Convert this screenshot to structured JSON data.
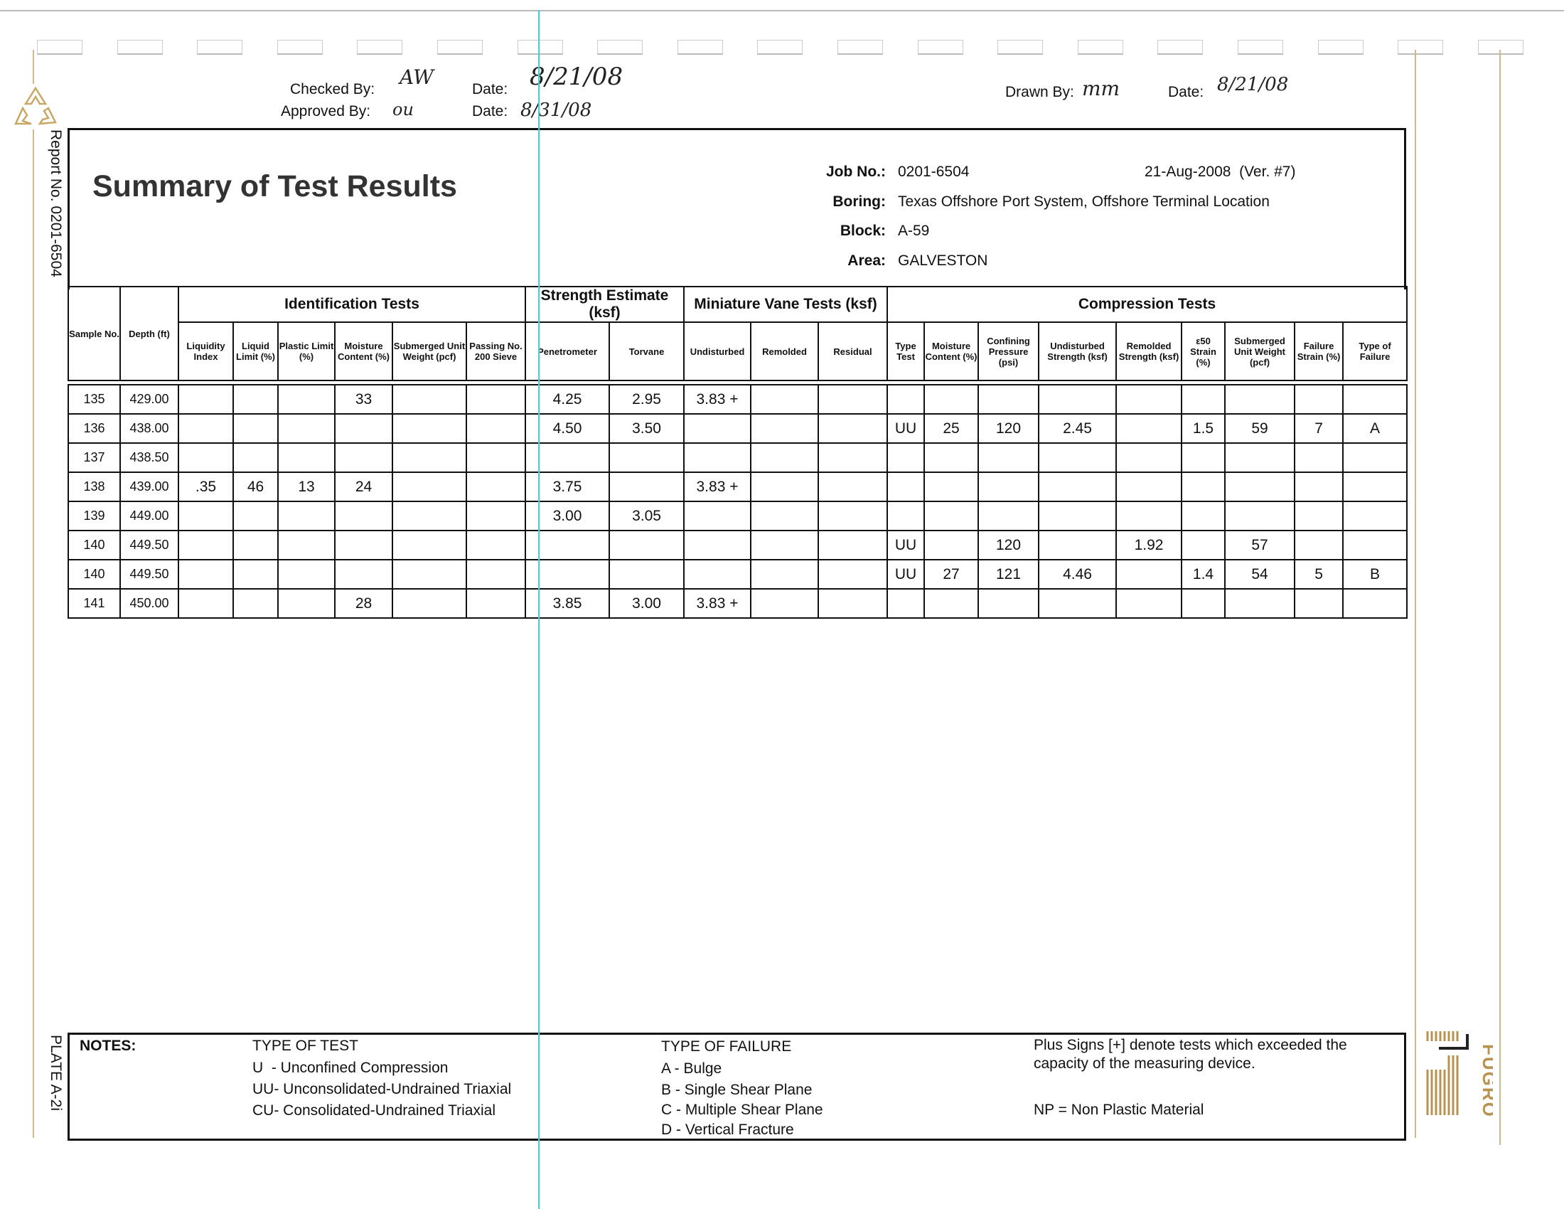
{
  "signoff": {
    "checked_by_label": "Checked By:",
    "checked_by_sig": "AW",
    "approved_by_label": "Approved By:",
    "approved_by_sig": "ou",
    "date_label": "Date:",
    "checked_date": "8/21/08",
    "approved_date": "8/31/08",
    "drawn_by_label": "Drawn By:",
    "drawn_by_sig": "mm",
    "drawn_date": "8/21/08"
  },
  "side": {
    "report_no": "Report No. 0201-6504",
    "plate": "PLATE A-2i"
  },
  "header": {
    "title": "Summary of Test Results",
    "job_label": "Job No.:",
    "job": "0201-6504",
    "date_version": "21-Aug-2008  (Ver. #7)",
    "boring_label": "Boring:",
    "boring": "Texas Offshore Port System, Offshore Terminal Location",
    "block_label": "Block:",
    "block": "A-59",
    "area_label": "Area:",
    "area": "GALVESTON"
  },
  "table": {
    "groups": {
      "identification": "Identification Tests",
      "strength": "Strength Estimate (ksf)",
      "vane": "Miniature Vane Tests (ksf)",
      "compression": "Compression Tests"
    },
    "columns": [
      "Sample No.",
      "Depth (ft)",
      "Liquidity Index",
      "Liquid Limit (%)",
      "Plastic Limit (%)",
      "Moisture Content (%)",
      "Submerged Unit Weight (pcf)",
      "Passing No. 200 Sieve",
      "Penetrometer",
      "Torvane",
      "Undisturbed",
      "Remolded",
      "Residual",
      "Type Test",
      "Moisture Content (%)",
      "Confining Pressure (psi)",
      "Undisturbed Strength (ksf)",
      "Remolded Strength (ksf)",
      "ε50 Strain (%)",
      "Submerged Unit Weight (pcf)",
      "Failure Strain (%)",
      "Type of Failure"
    ],
    "rows": [
      [
        "135",
        "429.00",
        "",
        "",
        "",
        "33",
        "",
        "",
        "4.25",
        "2.95",
        "3.83 +",
        "",
        "",
        "",
        "",
        "",
        "",
        "",
        "",
        "",
        "",
        ""
      ],
      [
        "136",
        "438.00",
        "",
        "",
        "",
        "",
        "",
        "",
        "4.50",
        "3.50",
        "",
        "",
        "",
        "UU",
        "25",
        "120",
        "2.45",
        "",
        "1.5",
        "59",
        "7",
        "A"
      ],
      [
        "137",
        "438.50",
        "",
        "",
        "",
        "",
        "",
        "",
        "",
        "",
        "",
        "",
        "",
        "",
        "",
        "",
        "",
        "",
        "",
        "",
        "",
        ""
      ],
      [
        "138",
        "439.00",
        ".35",
        "46",
        "13",
        "24",
        "",
        "",
        "3.75",
        "",
        "3.83 +",
        "",
        "",
        "",
        "",
        "",
        "",
        "",
        "",
        "",
        "",
        ""
      ],
      [
        "139",
        "449.00",
        "",
        "",
        "",
        "",
        "",
        "",
        "3.00",
        "3.05",
        "",
        "",
        "",
        "",
        "",
        "",
        "",
        "",
        "",
        "",
        "",
        ""
      ],
      [
        "140",
        "449.50",
        "",
        "",
        "",
        "",
        "",
        "",
        "",
        "",
        "",
        "",
        "",
        "UU",
        "",
        "120",
        "",
        "1.92",
        "",
        "57",
        "",
        ""
      ],
      [
        "140",
        "449.50",
        "",
        "",
        "",
        "",
        "",
        "",
        "",
        "",
        "",
        "",
        "",
        "UU",
        "27",
        "121",
        "4.46",
        "",
        "1.4",
        "54",
        "5",
        "B"
      ],
      [
        "141",
        "450.00",
        "",
        "",
        "",
        "28",
        "",
        "",
        "3.85",
        "3.00",
        "3.83 +",
        "",
        "",
        "",
        "",
        "",
        "",
        "",
        "",
        "",
        "",
        ""
      ]
    ]
  },
  "notes": {
    "label": "NOTES:",
    "test_title": "TYPE OF TEST",
    "tests": [
      "U  - Unconfined Compression",
      "UU- Unconsolidated-Undrained Triaxial",
      "CU- Consolidated-Undrained Triaxial"
    ],
    "failure_title": "TYPE OF FAILURE",
    "failures": [
      "A - Bulge",
      "B - Single Shear Plane",
      "C - Multiple Shear Plane",
      "D - Vertical Fracture"
    ],
    "plus_note": "Plus Signs [+] denote tests which exceeded the capacity of the measuring device.",
    "np_note": "NP = Non Plastic Material"
  },
  "logo": {
    "text": "FUGRO",
    "color": "#b8924f"
  },
  "colors": {
    "tan_rule": "#d2b98a",
    "cyan_rule": "#3ad6e0"
  }
}
